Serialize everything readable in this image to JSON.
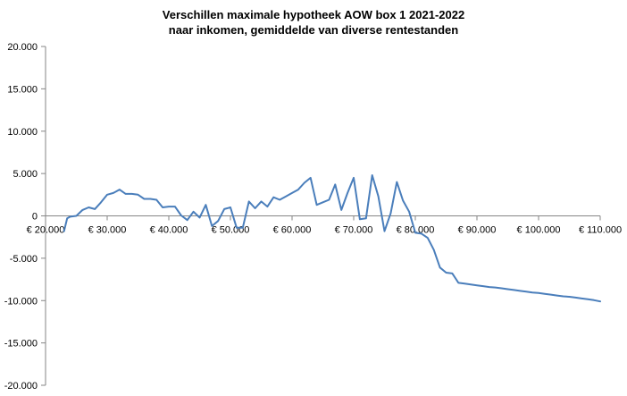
{
  "chart_data": {
    "type": "line",
    "title_lines": [
      "Verschillen maximale hypotheek AOW box 1 2021-2022",
      "naar inkomen, gemiddelde van diverse rentestanden"
    ],
    "xlabel": "",
    "ylabel": "",
    "xlim": [
      20000,
      110000
    ],
    "ylim": [
      -20000,
      20000
    ],
    "x_ticks": [
      20000,
      30000,
      40000,
      50000,
      60000,
      70000,
      80000,
      90000,
      100000,
      110000
    ],
    "x_tick_labels": [
      "€ 20.000",
      "€ 30.000",
      "€ 40.000",
      "€ 50.000",
      "€ 60.000",
      "€ 70.000",
      "€ 80.000",
      "€ 90.000",
      "€ 100.000",
      "€ 110.000"
    ],
    "y_ticks": [
      20000,
      15000,
      10000,
      5000,
      0,
      -5000,
      -10000,
      -15000,
      -20000
    ],
    "y_tick_labels": [
      "20.000",
      "15.000",
      "10.000",
      "5.000",
      "0",
      "-5.000",
      "-10.000",
      "-15.000",
      "-20.000"
    ],
    "grid": false,
    "legend": "none",
    "line_color": "#4a7ebb",
    "series": [
      {
        "x": [
          23000,
          23500,
          24000,
          25000,
          26000,
          27000,
          28000,
          29000,
          30000,
          31000,
          32000,
          33000,
          34000,
          35000,
          36000,
          37000,
          38000,
          39000,
          40000,
          41000,
          42000,
          43000,
          44000,
          45000,
          46000,
          47000,
          48000,
          49000,
          50000,
          51000,
          52000,
          53000,
          54000,
          55000,
          56000,
          57000,
          58000,
          59000,
          60000,
          61000,
          62000,
          63000,
          64000,
          65000,
          66000,
          67000,
          68000,
          69000,
          70000,
          71000,
          72000,
          73000,
          74000,
          75000,
          76000,
          77000,
          78000,
          79000,
          80000,
          81000,
          82000,
          83000,
          84000,
          85000,
          86000,
          87000,
          88000,
          89000,
          90000,
          91000,
          92000,
          93000,
          94000,
          95000,
          96000,
          97000,
          98000,
          99000,
          100000,
          101000,
          102000,
          103000,
          104000,
          105000,
          106000,
          107000,
          108000,
          109000,
          110000
        ],
        "values": [
          -1800,
          -300,
          -100,
          0,
          700,
          1000,
          800,
          1600,
          2500,
          2700,
          3100,
          2600,
          2600,
          2500,
          2000,
          2000,
          1900,
          1000,
          1100,
          1100,
          50,
          -500,
          500,
          -200,
          1300,
          -1200,
          -600,
          800,
          1000,
          -1400,
          -1400,
          1700,
          900,
          1700,
          1100,
          2200,
          1900,
          2300,
          2700,
          3100,
          3900,
          4500,
          1300,
          1600,
          1900,
          3700,
          700,
          2700,
          4500,
          -400,
          -300,
          4800,
          2300,
          -1800,
          300,
          4000,
          1800,
          500,
          -2000,
          -2100,
          -2600,
          -4000,
          -6100,
          -6700,
          -6800,
          -7900,
          -8000,
          -8100,
          -8200,
          -8300,
          -8400,
          -8450,
          -8550,
          -8650,
          -8750,
          -8850,
          -8950,
          -9050,
          -9100,
          -9200,
          -9300,
          -9400,
          -9500,
          -9550,
          -9650,
          -9750,
          -9850,
          -9950,
          -10100
        ]
      }
    ]
  }
}
